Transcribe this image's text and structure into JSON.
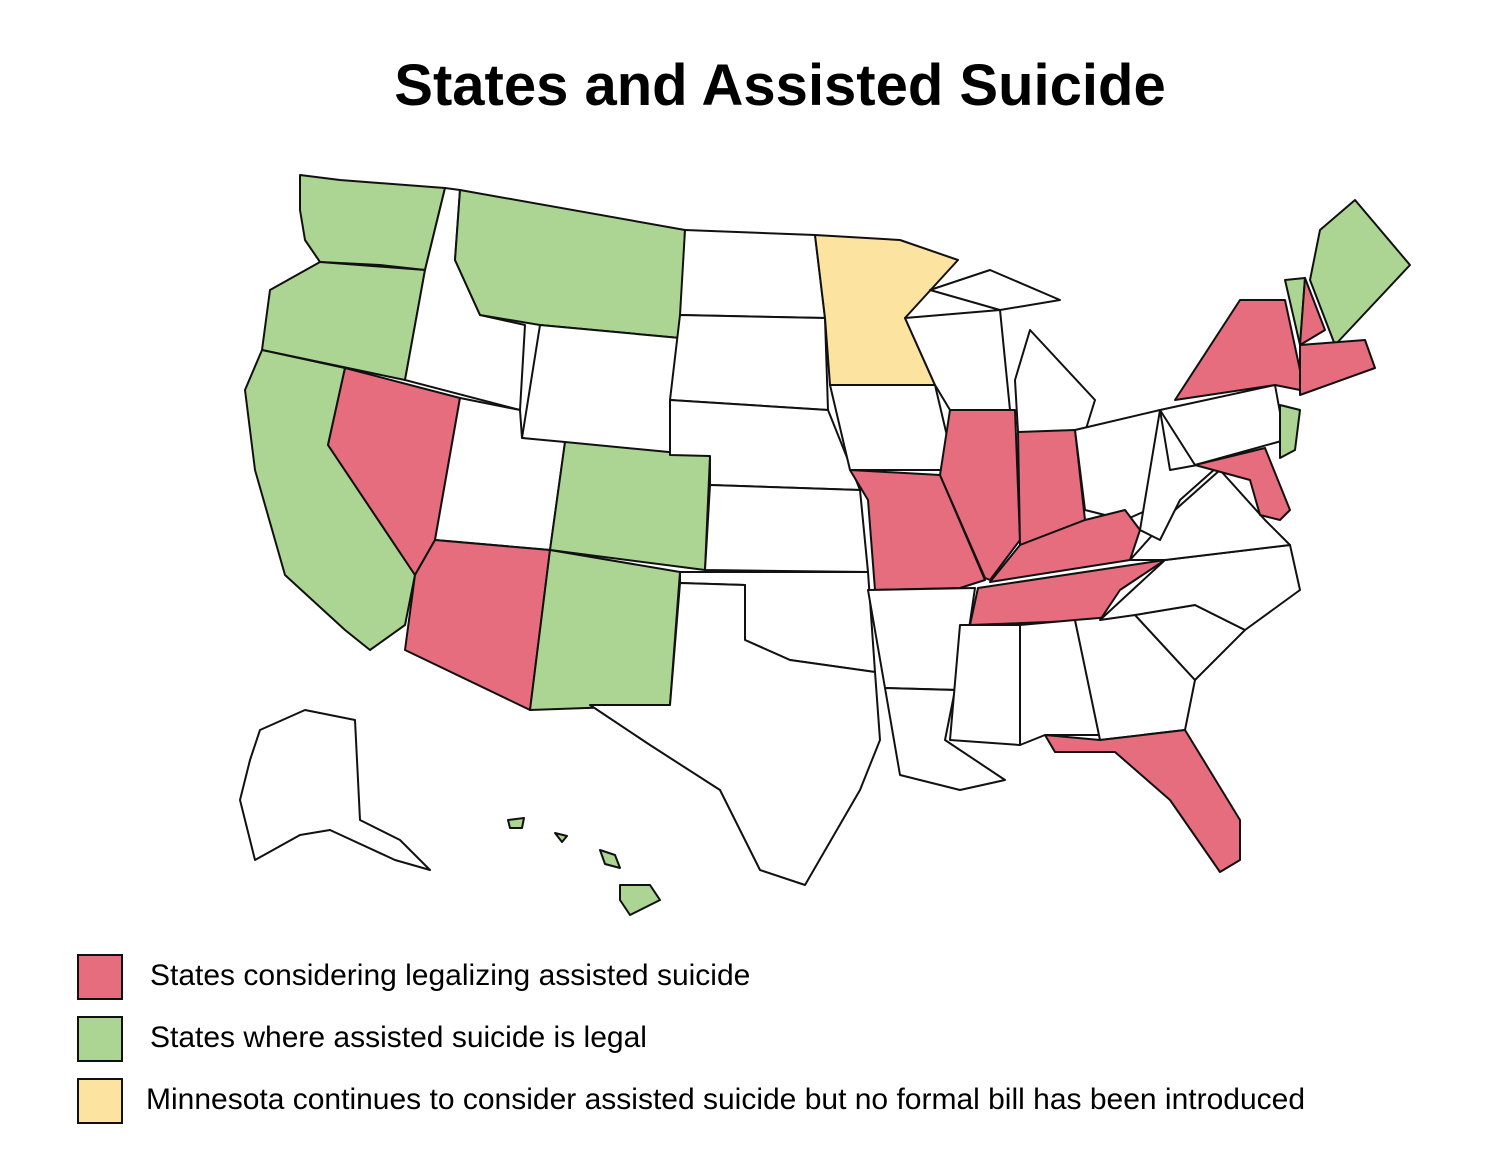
{
  "title": "States and Assisted Suicide",
  "legend": [
    {
      "label": "States considering legalizing assisted suicide",
      "color": "#e56d7d"
    },
    {
      "label": "States where assisted suicide is legal",
      "color": "#acd594"
    },
    {
      "label": "Minnesota continues to consider assisted suicide but no formal bill has been introduced",
      "color": "#fde3a0"
    }
  ]
}
